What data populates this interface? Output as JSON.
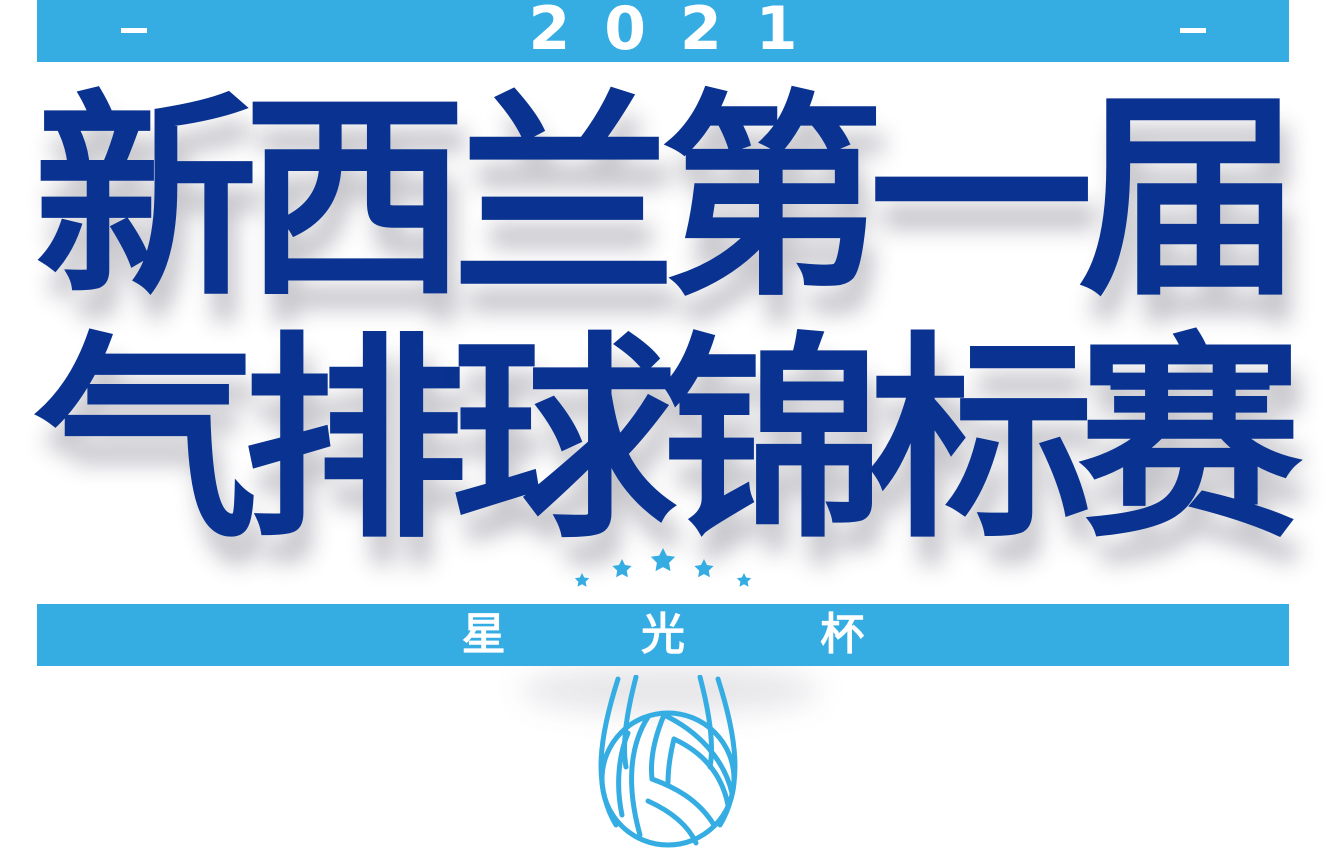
{
  "banner": {
    "year": "2021",
    "left_dash": "-",
    "right_dash": "-"
  },
  "title": {
    "line1": [
      "新",
      "西",
      "兰",
      "第",
      "一",
      "届"
    ],
    "line2": [
      "气",
      "排",
      "球",
      "锦",
      "标",
      "赛"
    ]
  },
  "subtitle": {
    "cup_name": "星 光 杯"
  },
  "decoration": {
    "star_count": 5,
    "star_icon": "star-icon",
    "ball_icon": "volleyball-icon"
  },
  "colors": {
    "accent_band": "#35ade3",
    "title_text": "#0a3391",
    "band_text": "#ffffff",
    "background": "#ffffff"
  }
}
